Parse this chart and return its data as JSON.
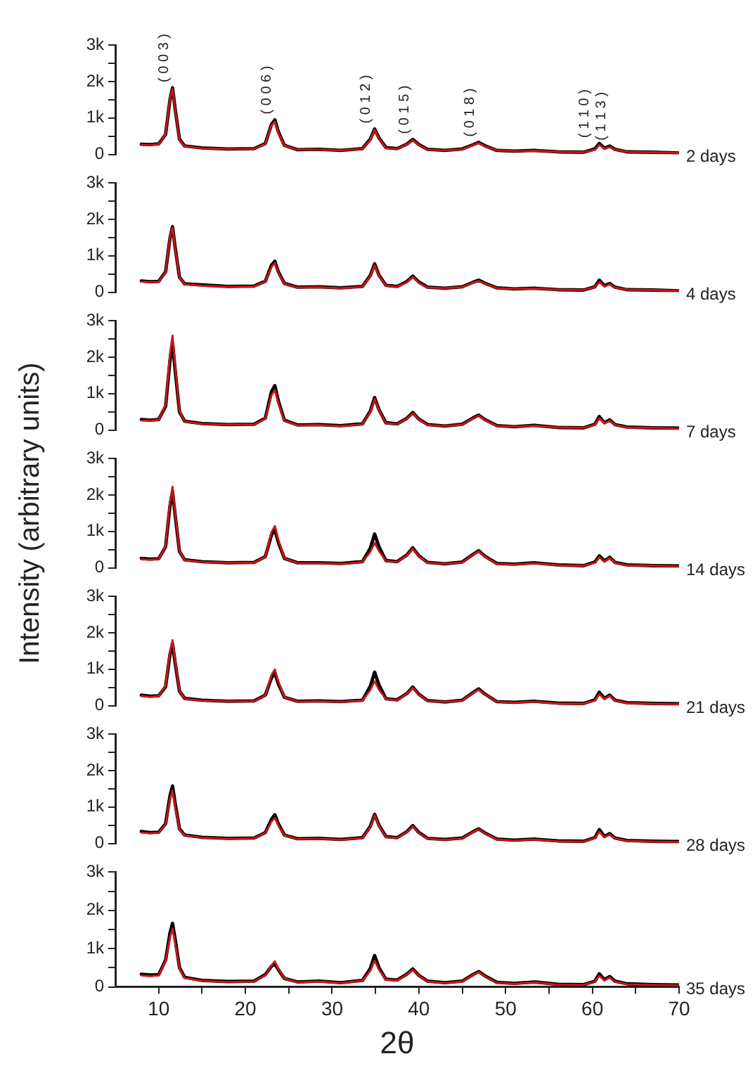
{
  "chart_data": [
    {
      "type": "line",
      "tick_labels": "y",
      "xlim": [
        5,
        70
      ],
      "ylim": [
        0,
        3000
      ],
      "yticks": [
        {
          "value": 0,
          "label": "0"
        },
        {
          "value": 500,
          "label": null
        },
        {
          "value": 1000,
          "label": "1k"
        },
        {
          "value": 1500,
          "label": null
        },
        {
          "value": 2000,
          "label": "2k"
        },
        {
          "value": 2500,
          "label": null
        },
        {
          "value": 3000,
          "label": "3k"
        }
      ],
      "x": [
        8,
        9,
        10,
        10.8,
        11.3,
        11.6,
        11.9,
        12.4,
        13,
        15,
        18,
        21,
        22.3,
        23.0,
        23.4,
        23.8,
        24.5,
        26,
        28.5,
        31,
        33.5,
        34.4,
        34.9,
        35.4,
        36.2,
        37.5,
        38.6,
        39.3,
        40,
        41,
        43,
        45,
        46.3,
        46.9,
        47.6,
        49,
        51,
        53.3,
        56,
        59,
        60.3,
        60.8,
        61.4,
        62.0,
        62.6,
        64,
        67,
        70
      ],
      "series": [
        {
          "color": "#000000",
          "values": [
            280,
            270,
            290,
            550,
            1500,
            1830,
            1250,
            420,
            230,
            180,
            150,
            160,
            300,
            820,
            950,
            620,
            250,
            130,
            140,
            110,
            160,
            420,
            700,
            450,
            190,
            160,
            280,
            410,
            270,
            140,
            110,
            150,
            270,
            330,
            240,
            110,
            90,
            110,
            70,
            60,
            150,
            300,
            170,
            230,
            140,
            70,
            60,
            40
          ]
        },
        {
          "color": "#d01414",
          "values": [
            260,
            260,
            280,
            560,
            1520,
            1800,
            1240,
            400,
            220,
            170,
            150,
            150,
            290,
            800,
            900,
            600,
            240,
            130,
            130,
            110,
            150,
            400,
            680,
            430,
            180,
            150,
            270,
            390,
            260,
            130,
            110,
            140,
            260,
            310,
            230,
            110,
            90,
            100,
            70,
            60,
            130,
            260,
            160,
            210,
            130,
            70,
            60,
            40
          ]
        }
      ],
      "annotations": [
        "2 days",
        {
          "text": "( 0 0 3 )",
          "x": 11.6,
          "y": 1830
        },
        {
          "text": "( 0 0 6 )",
          "x": 23.4,
          "y": 950
        },
        {
          "text": "( 0 1 2 )",
          "x": 34.9,
          "y": 700
        },
        {
          "text": "( 0 1 5 )",
          "x": 39.3,
          "y": 410
        },
        {
          "text": "( 0 1 8 )",
          "x": 46.9,
          "y": 330
        },
        {
          "text": "( 1 1 0 )",
          "x": 60.8,
          "y": 300
        },
        {
          "text": "( 1 1 3 )",
          "x": 62.0,
          "y": 230
        }
      ]
    },
    {
      "type": "line",
      "tick_labels": "y",
      "xlim": [
        5,
        70
      ],
      "ylim": [
        0,
        3000
      ],
      "yticks": [
        {
          "value": 0,
          "label": "0"
        },
        {
          "value": 500,
          "label": null
        },
        {
          "value": 1000,
          "label": "1k"
        },
        {
          "value": 1500,
          "label": null
        },
        {
          "value": 2000,
          "label": "2k"
        },
        {
          "value": 2500,
          "label": null
        },
        {
          "value": 3000,
          "label": "3k"
        }
      ],
      "x": [
        8,
        9,
        10,
        10.8,
        11.3,
        11.6,
        11.9,
        12.4,
        13,
        15,
        18,
        21,
        22.3,
        23.0,
        23.4,
        23.8,
        24.5,
        26,
        28.5,
        31,
        33.5,
        34.4,
        34.9,
        35.4,
        36.2,
        37.5,
        38.6,
        39.3,
        40,
        41,
        43,
        45,
        46.3,
        46.9,
        47.6,
        49,
        51,
        53.3,
        56,
        59,
        60.3,
        60.8,
        61.4,
        62.0,
        62.6,
        64,
        67,
        70
      ],
      "series": [
        {
          "color": "#000000",
          "values": [
            310,
            290,
            300,
            560,
            1480,
            1800,
            1230,
            410,
            230,
            200,
            160,
            170,
            300,
            740,
            850,
            560,
            240,
            140,
            150,
            120,
            160,
            460,
            780,
            470,
            190,
            160,
            290,
            440,
            280,
            140,
            110,
            150,
            280,
            330,
            250,
            120,
            90,
            110,
            70,
            60,
            150,
            330,
            180,
            240,
            140,
            70,
            60,
            40
          ]
        },
        {
          "color": "#d01414",
          "values": [
            290,
            280,
            290,
            550,
            1500,
            1780,
            1200,
            400,
            220,
            180,
            150,
            160,
            290,
            700,
            800,
            540,
            230,
            130,
            140,
            110,
            150,
            440,
            740,
            450,
            180,
            150,
            270,
            420,
            260,
            130,
            110,
            140,
            270,
            310,
            240,
            110,
            90,
            100,
            70,
            60,
            140,
            280,
            160,
            220,
            130,
            70,
            60,
            40
          ]
        }
      ],
      "annotations": [
        "4 days"
      ]
    },
    {
      "type": "line",
      "tick_labels": "y",
      "xlim": [
        5,
        70
      ],
      "ylim": [
        0,
        3000
      ],
      "yticks": [
        {
          "value": 0,
          "label": "0"
        },
        {
          "value": 500,
          "label": null
        },
        {
          "value": 1000,
          "label": "1k"
        },
        {
          "value": 1500,
          "label": null
        },
        {
          "value": 2000,
          "label": "2k"
        },
        {
          "value": 2500,
          "label": null
        },
        {
          "value": 3000,
          "label": "3k"
        }
      ],
      "x": [
        8,
        9,
        10,
        10.8,
        11.3,
        11.6,
        11.9,
        12.4,
        13,
        15,
        18,
        21,
        22.3,
        23.0,
        23.4,
        23.8,
        24.5,
        26,
        28.5,
        31,
        33.5,
        34.4,
        34.9,
        35.4,
        36.2,
        37.5,
        38.6,
        39.3,
        40,
        41,
        43,
        45,
        46.3,
        46.9,
        47.6,
        49,
        51,
        53.3,
        56,
        59,
        60.3,
        60.8,
        61.4,
        62.0,
        62.6,
        64,
        67,
        70
      ],
      "series": [
        {
          "color": "#000000",
          "values": [
            290,
            270,
            290,
            650,
            1900,
            2400,
            1650,
            500,
            240,
            180,
            150,
            160,
            330,
            1050,
            1220,
            800,
            270,
            140,
            150,
            120,
            170,
            520,
            890,
            560,
            200,
            170,
            320,
            480,
            300,
            150,
            110,
            160,
            340,
            410,
            290,
            120,
            90,
            130,
            70,
            60,
            160,
            370,
            200,
            280,
            150,
            80,
            60,
            50
          ]
        },
        {
          "color": "#d01414",
          "values": [
            260,
            260,
            280,
            680,
            2100,
            2600,
            1750,
            520,
            230,
            170,
            150,
            150,
            310,
            950,
            1100,
            740,
            250,
            130,
            140,
            110,
            160,
            500,
            860,
            540,
            190,
            160,
            310,
            460,
            290,
            140,
            110,
            150,
            330,
            400,
            280,
            110,
            90,
            120,
            70,
            60,
            150,
            320,
            180,
            260,
            140,
            70,
            60,
            40
          ]
        }
      ],
      "annotations": [
        "7 days"
      ]
    },
    {
      "type": "line",
      "ylabel": "Intensity (arbitrary units)",
      "tick_labels": "y",
      "xlim": [
        5,
        70
      ],
      "ylim": [
        0,
        3000
      ],
      "yticks": [
        {
          "value": 0,
          "label": "0"
        },
        {
          "value": 500,
          "label": null
        },
        {
          "value": 1000,
          "label": "1k"
        },
        {
          "value": 1500,
          "label": null
        },
        {
          "value": 2000,
          "label": "2k"
        },
        {
          "value": 2500,
          "label": null
        },
        {
          "value": 3000,
          "label": "3k"
        }
      ],
      "x": [
        8,
        9,
        10,
        10.8,
        11.3,
        11.6,
        11.9,
        12.4,
        13,
        15,
        18,
        21,
        22.3,
        23.0,
        23.4,
        23.8,
        24.5,
        26,
        28.5,
        31,
        33.5,
        34.4,
        34.9,
        35.4,
        36.2,
        37.5,
        38.6,
        39.3,
        40,
        41,
        43,
        45,
        46.3,
        46.9,
        47.6,
        49,
        51,
        53.3,
        56,
        59,
        60.3,
        60.8,
        61.4,
        62.0,
        62.6,
        64,
        67,
        70
      ],
      "series": [
        {
          "color": "#000000",
          "values": [
            260,
            240,
            250,
            580,
            1700,
            2100,
            1450,
            450,
            220,
            170,
            140,
            150,
            310,
            900,
            1050,
            700,
            260,
            140,
            140,
            120,
            170,
            540,
            930,
            580,
            200,
            170,
            350,
            550,
            330,
            150,
            110,
            160,
            380,
            470,
            320,
            120,
            100,
            140,
            80,
            60,
            160,
            330,
            190,
            290,
            150,
            80,
            60,
            50
          ]
        },
        {
          "color": "#d01414",
          "values": [
            230,
            220,
            240,
            600,
            1800,
            2230,
            1500,
            460,
            210,
            160,
            140,
            140,
            300,
            980,
            1150,
            760,
            260,
            130,
            130,
            110,
            160,
            440,
            690,
            460,
            190,
            160,
            340,
            530,
            320,
            140,
            110,
            150,
            370,
            450,
            310,
            110,
            90,
            130,
            70,
            60,
            140,
            290,
            170,
            270,
            140,
            70,
            60,
            40
          ]
        }
      ],
      "annotations": [
        "14 days"
      ]
    },
    {
      "type": "line",
      "tick_labels": "y",
      "xlim": [
        5,
        70
      ],
      "ylim": [
        0,
        3000
      ],
      "yticks": [
        {
          "value": 0,
          "label": "0"
        },
        {
          "value": 500,
          "label": null
        },
        {
          "value": 1000,
          "label": "1k"
        },
        {
          "value": 1500,
          "label": null
        },
        {
          "value": 2000,
          "label": "2k"
        },
        {
          "value": 2500,
          "label": null
        },
        {
          "value": 3000,
          "label": "3k"
        }
      ],
      "x": [
        8,
        9,
        10,
        10.8,
        11.3,
        11.6,
        11.9,
        12.4,
        13,
        15,
        18,
        21,
        22.3,
        23.0,
        23.4,
        23.8,
        24.5,
        26,
        28.5,
        31,
        33.5,
        34.4,
        34.9,
        35.4,
        36.2,
        37.5,
        38.6,
        39.3,
        40,
        41,
        43,
        45,
        46.3,
        46.9,
        47.6,
        49,
        51,
        53.3,
        56,
        59,
        60.3,
        60.8,
        61.4,
        62.0,
        62.6,
        64,
        67,
        70
      ],
      "series": [
        {
          "color": "#000000",
          "values": [
            290,
            260,
            270,
            520,
            1400,
            1700,
            1180,
            400,
            200,
            150,
            120,
            130,
            290,
            760,
            900,
            600,
            230,
            120,
            130,
            110,
            150,
            530,
            920,
            570,
            190,
            160,
            330,
            510,
            310,
            140,
            100,
            150,
            370,
            460,
            320,
            110,
            90,
            120,
            70,
            60,
            160,
            370,
            200,
            290,
            150,
            80,
            60,
            50
          ]
        },
        {
          "color": "#d01414",
          "values": [
            260,
            240,
            260,
            540,
            1480,
            1800,
            1240,
            410,
            190,
            140,
            120,
            120,
            280,
            840,
            1000,
            660,
            230,
            110,
            120,
            100,
            140,
            430,
            670,
            440,
            180,
            150,
            320,
            490,
            300,
            130,
            100,
            140,
            360,
            440,
            310,
            110,
            80,
            110,
            60,
            50,
            140,
            310,
            180,
            270,
            140,
            70,
            50,
            40
          ]
        }
      ],
      "annotations": [
        "21 days"
      ]
    },
    {
      "type": "line",
      "tick_labels": "y",
      "xlim": [
        5,
        70
      ],
      "ylim": [
        0,
        3000
      ],
      "yticks": [
        {
          "value": 0,
          "label": "0"
        },
        {
          "value": 500,
          "label": null
        },
        {
          "value": 1000,
          "label": "1k"
        },
        {
          "value": 1500,
          "label": null
        },
        {
          "value": 2000,
          "label": "2k"
        },
        {
          "value": 2500,
          "label": null
        },
        {
          "value": 3000,
          "label": "3k"
        }
      ],
      "x": [
        8,
        9,
        10,
        10.8,
        11.3,
        11.6,
        11.9,
        12.4,
        13,
        15,
        18,
        21,
        22.3,
        23.0,
        23.4,
        23.8,
        24.5,
        26,
        28.5,
        31,
        33.5,
        34.4,
        34.9,
        35.4,
        36.2,
        37.5,
        38.6,
        39.3,
        40,
        41,
        43,
        45,
        46.3,
        46.9,
        47.6,
        49,
        51,
        53.3,
        56,
        59,
        60.3,
        60.8,
        61.4,
        62.0,
        62.6,
        64,
        67,
        70
      ],
      "series": [
        {
          "color": "#000000",
          "values": [
            330,
            300,
            310,
            540,
            1300,
            1580,
            1100,
            400,
            230,
            170,
            140,
            150,
            300,
            660,
            790,
            540,
            230,
            130,
            140,
            110,
            160,
            470,
            800,
            500,
            190,
            160,
            320,
            490,
            300,
            140,
            110,
            150,
            330,
            400,
            290,
            120,
            90,
            120,
            70,
            60,
            160,
            380,
            190,
            270,
            150,
            80,
            60,
            50
          ]
        },
        {
          "color": "#d01414",
          "values": [
            300,
            280,
            300,
            520,
            1220,
            1450,
            1020,
            380,
            220,
            160,
            130,
            140,
            290,
            600,
            700,
            490,
            220,
            120,
            130,
            100,
            150,
            450,
            780,
            480,
            180,
            150,
            310,
            470,
            290,
            130,
            100,
            140,
            320,
            390,
            280,
            110,
            80,
            110,
            60,
            50,
            150,
            320,
            170,
            250,
            140,
            70,
            50,
            40
          ]
        }
      ],
      "annotations": [
        "28 days"
      ]
    },
    {
      "type": "line",
      "xlabel": "2θ",
      "xlim": [
        5,
        70
      ],
      "xticks": [
        10,
        {
          "value": 15,
          "label": null
        },
        20,
        {
          "value": 25,
          "label": null
        },
        30,
        {
          "value": 35,
          "label": null
        },
        40,
        {
          "value": 45,
          "label": null
        },
        50,
        {
          "value": 55,
          "label": null
        },
        60,
        {
          "value": 65,
          "label": null
        },
        70
      ],
      "ylim": [
        0,
        3000
      ],
      "yticks": [
        {
          "value": 0,
          "label": "0"
        },
        {
          "value": 500,
          "label": null
        },
        {
          "value": 1000,
          "label": "1k"
        },
        {
          "value": 1500,
          "label": null
        },
        {
          "value": 2000,
          "label": "2k"
        },
        {
          "value": 2500,
          "label": null
        },
        {
          "value": 3000,
          "label": "3k"
        }
      ],
      "x": [
        8,
        9,
        10,
        10.8,
        11.3,
        11.6,
        11.9,
        12.4,
        13,
        15,
        18,
        21,
        22.3,
        23.0,
        23.4,
        23.8,
        24.5,
        26,
        28.5,
        31,
        33.5,
        34.4,
        34.9,
        35.4,
        36.2,
        37.5,
        38.6,
        39.3,
        40,
        41,
        43,
        45,
        46.3,
        46.9,
        47.6,
        49,
        51,
        53.3,
        56,
        59,
        60.3,
        60.8,
        61.4,
        62.0,
        62.6,
        64,
        67,
        70
      ],
      "series": [
        {
          "color": "#000000",
          "values": [
            330,
            310,
            320,
            700,
            1400,
            1660,
            1250,
            500,
            250,
            170,
            140,
            150,
            320,
            540,
            600,
            450,
            220,
            130,
            150,
            110,
            170,
            480,
            820,
            500,
            200,
            180,
            330,
            470,
            300,
            150,
            110,
            150,
            330,
            400,
            290,
            120,
            90,
            130,
            70,
            60,
            150,
            340,
            190,
            270,
            150,
            80,
            60,
            50
          ]
        },
        {
          "color": "#d01414",
          "values": [
            300,
            280,
            300,
            680,
            1300,
            1520,
            1150,
            470,
            230,
            160,
            130,
            140,
            300,
            560,
            670,
            470,
            220,
            120,
            140,
            100,
            160,
            420,
            690,
            450,
            190,
            170,
            320,
            450,
            290,
            140,
            100,
            140,
            320,
            390,
            280,
            110,
            80,
            120,
            60,
            50,
            140,
            290,
            170,
            250,
            140,
            70,
            50,
            40
          ]
        }
      ],
      "annotations": [
        "35 days"
      ]
    }
  ]
}
